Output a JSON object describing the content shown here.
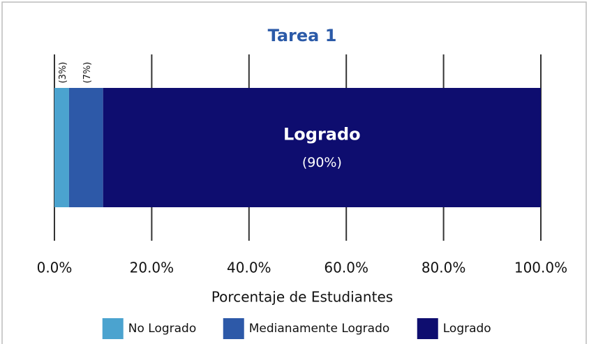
{
  "chart_data": {
    "type": "stacked-bar-horizontal",
    "title": "Tarea 1",
    "categories": [
      null
    ],
    "series": [
      {
        "name": "No Logrado",
        "color": "#4ba3cf",
        "values": [
          3
        ],
        "value_labels": [
          "(3%)"
        ]
      },
      {
        "name": "Medianamente Logrado",
        "color": "#2d59a8",
        "values": [
          7
        ],
        "value_labels": [
          "(7%)"
        ]
      },
      {
        "name": "Logrado",
        "color": "#0e0d6f",
        "values": [
          90
        ],
        "value_labels": [
          "(90%)"
        ]
      }
    ],
    "xlabel": "Porcentaje de Estudiantes",
    "xlim": [
      0,
      100
    ],
    "xticks": [
      {
        "value": 0,
        "label": "0.0%"
      },
      {
        "value": 20,
        "label": "20.0%"
      },
      {
        "value": 40,
        "label": "40.0%"
      },
      {
        "value": 60,
        "label": "60.0%"
      },
      {
        "value": 80,
        "label": "80.0%"
      },
      {
        "value": 100,
        "label": "100.0%"
      }
    ],
    "grid": true,
    "legend": "bottom"
  }
}
